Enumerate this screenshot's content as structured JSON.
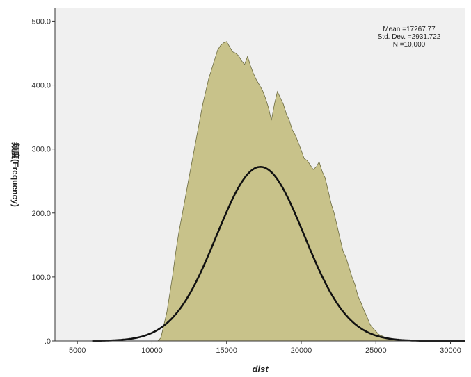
{
  "chart_data": {
    "type": "area",
    "xlabel": "dist",
    "ylabel": "频度(Frequency)",
    "xlim": [
      3500,
      31000
    ],
    "ylim": [
      0,
      520
    ],
    "xticks": [
      5000,
      10000,
      15000,
      20000,
      25000,
      30000
    ],
    "xtick_labels": [
      "5000",
      "10000",
      "15000",
      "20000",
      "25000",
      "30000"
    ],
    "yticks": [
      0,
      100,
      200,
      300,
      400,
      500
    ],
    "ytick_labels": [
      ".0",
      "100.0",
      "200.0",
      "300.0",
      "400.0",
      "500.0"
    ],
    "grid": false,
    "stats": {
      "mean_text": "Mean =17267.77",
      "sd_text": "Std. Dev. =2931.722",
      "n_text": "N =10,000"
    },
    "colors": {
      "plot_background": "#f0f0f0",
      "histogram_fill": "#c8c28a",
      "histogram_edge": "#6b6a40",
      "normal_curve": "#111111"
    },
    "histogram": {
      "x": [
        10400,
        10600,
        10800,
        11000,
        11200,
        11400,
        11600,
        11800,
        12000,
        12200,
        12400,
        12600,
        12800,
        13000,
        13200,
        13400,
        13600,
        13800,
        14000,
        14200,
        14400,
        14600,
        14800,
        15000,
        15200,
        15400,
        15600,
        15800,
        16000,
        16200,
        16400,
        16600,
        16800,
        17000,
        17200,
        17400,
        17600,
        17800,
        18000,
        18200,
        18400,
        18600,
        18800,
        19000,
        19200,
        19400,
        19600,
        19800,
        20000,
        20200,
        20400,
        20600,
        20800,
        21000,
        21200,
        21400,
        21600,
        21800,
        22000,
        22200,
        22400,
        22600,
        22800,
        23000,
        23200,
        23400,
        23600,
        23800,
        24000,
        24200,
        24400,
        24600,
        24800,
        25000,
        25200,
        25400,
        25600,
        25800,
        26000,
        26200,
        26400,
        26600,
        26800,
        27000
      ],
      "y": [
        0,
        5,
        25,
        45,
        75,
        105,
        140,
        170,
        195,
        220,
        245,
        270,
        295,
        320,
        345,
        370,
        390,
        410,
        425,
        440,
        455,
        462,
        466,
        468,
        460,
        452,
        450,
        446,
        438,
        432,
        445,
        430,
        418,
        408,
        400,
        392,
        380,
        365,
        345,
        370,
        390,
        380,
        370,
        355,
        345,
        330,
        322,
        310,
        298,
        285,
        282,
        275,
        268,
        272,
        280,
        265,
        255,
        235,
        215,
        200,
        180,
        160,
        140,
        130,
        115,
        100,
        88,
        70,
        60,
        48,
        38,
        26,
        20,
        15,
        10,
        8,
        6,
        5,
        4,
        3,
        2,
        1,
        0,
        0
      ]
    },
    "normal_curve": {
      "mean": 17267.77,
      "sd": 2931.722,
      "n": 10000,
      "bin_width": 200,
      "x_range": [
        6000,
        31000
      ]
    }
  }
}
